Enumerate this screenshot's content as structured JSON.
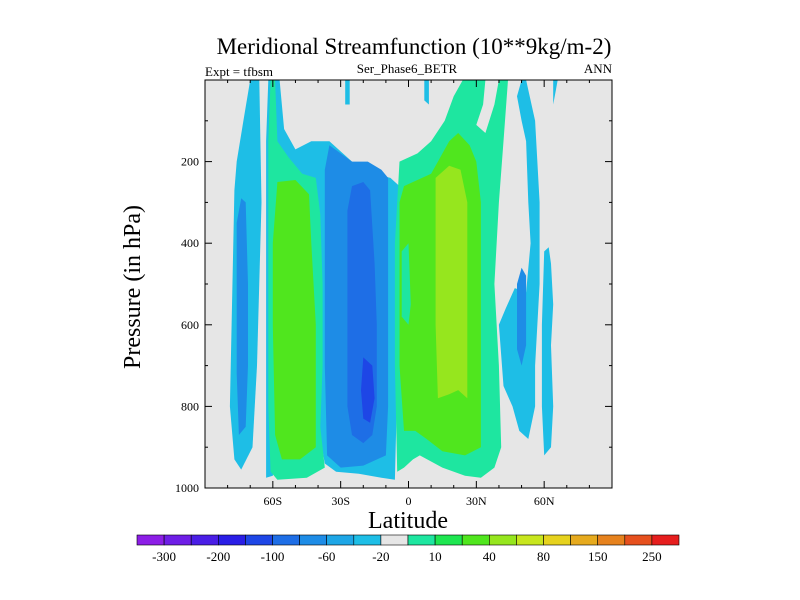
{
  "chart_data": {
    "type": "heatmap",
    "title": "Meridional Streamfunction (10**9kg/m-2)",
    "left_label": "Expt = tfbsm",
    "center_label": "Ser_Phase6_BETR",
    "right_label": "ANN",
    "xlabel": "Latitude",
    "ylabel": "Pressure (in hPa)",
    "xlim": [
      -90,
      90
    ],
    "ylim": [
      1000,
      0
    ],
    "x_ticks": [
      {
        "value": -60,
        "label": "60S"
      },
      {
        "value": -30,
        "label": "30S"
      },
      {
        "value": 0,
        "label": "0"
      },
      {
        "value": 30,
        "label": "30N"
      },
      {
        "value": 60,
        "label": "60N"
      }
    ],
    "y_ticks": [
      {
        "value": 200,
        "label": "200"
      },
      {
        "value": 400,
        "label": "400"
      },
      {
        "value": 600,
        "label": "600"
      },
      {
        "value": 800,
        "label": "800"
      },
      {
        "value": 1000,
        "label": "1000"
      }
    ],
    "background_color": "#e6e6e6",
    "colorbar": {
      "colors": [
        "#8c1ee6",
        "#6e1ee6",
        "#4a1ee6",
        "#2a1ee6",
        "#1e46e6",
        "#1e6ee6",
        "#1e8ce6",
        "#1ea6e6",
        "#1ebee6",
        "#e6e6e6",
        "#1ee6a0",
        "#1ee650",
        "#50e61e",
        "#96e61e",
        "#c8e61e",
        "#e6d21e",
        "#e6aa1e",
        "#e6821e",
        "#e6501e",
        "#e61e1e"
      ],
      "labels": [
        "-300",
        "-200",
        "-100",
        "-60",
        "-20",
        "10",
        "40",
        "80",
        "150",
        "250"
      ]
    },
    "contours": [
      {
        "color": "#1ebee6",
        "points": [
          [
            -77,
            270
          ],
          [
            -76,
            200
          ],
          [
            -73,
            100
          ],
          [
            -70,
            0
          ],
          [
            -66,
            0
          ],
          [
            -65,
            300
          ],
          [
            -67,
            700
          ],
          [
            -69,
            900
          ],
          [
            -74,
            955
          ],
          [
            -77,
            930
          ],
          [
            -79,
            800
          ]
        ]
      },
      {
        "color": "#1e8ce6",
        "points": [
          [
            -76,
            350
          ],
          [
            -74,
            290
          ],
          [
            -72,
            300
          ],
          [
            -71,
            500
          ],
          [
            -71,
            700
          ],
          [
            -72,
            850
          ],
          [
            -75,
            870
          ],
          [
            -76,
            720
          ]
        ]
      },
      {
        "color": "#1ebee6",
        "points": [
          [
            -62,
            0
          ],
          [
            -57,
            0
          ],
          [
            -55,
            120
          ],
          [
            -50,
            170
          ],
          [
            -43,
            150
          ],
          [
            -35,
            150
          ],
          [
            -25,
            200
          ],
          [
            -15,
            230
          ],
          [
            -8,
            240
          ],
          [
            -4,
            260
          ],
          [
            -4,
            500
          ],
          [
            -5,
            750
          ],
          [
            -6,
            980
          ],
          [
            -12,
            975
          ],
          [
            -22,
            965
          ],
          [
            -32,
            960
          ],
          [
            -37,
            940
          ],
          [
            -40,
            850
          ],
          [
            -40,
            600
          ],
          [
            -40,
            400
          ],
          [
            -44,
            260
          ],
          [
            -50,
            250
          ],
          [
            -56,
            250
          ],
          [
            -58,
            400
          ],
          [
            -59,
            700
          ],
          [
            -58,
            900
          ],
          [
            -60,
            970
          ],
          [
            -63,
            975
          ],
          [
            -63,
            800
          ],
          [
            -63,
            400
          ],
          [
            -63,
            150
          ]
        ]
      },
      {
        "color": "#1ee6a0",
        "points": [
          [
            -61,
            0
          ],
          [
            -59,
            0
          ],
          [
            -58,
            150
          ],
          [
            -53,
            190
          ],
          [
            -47,
            230
          ],
          [
            -41,
            240
          ],
          [
            -39,
            330
          ],
          [
            -38,
            500
          ],
          [
            -38,
            700
          ],
          [
            -39,
            850
          ],
          [
            -37,
            950
          ],
          [
            -45,
            975
          ],
          [
            -58,
            980
          ],
          [
            -61,
            960
          ],
          [
            -62,
            800
          ],
          [
            -62,
            400
          ],
          [
            -62,
            150
          ]
        ]
      },
      {
        "color": "#50e61e",
        "points": [
          [
            -58,
            250
          ],
          [
            -50,
            245
          ],
          [
            -44,
            280
          ],
          [
            -43,
            400
          ],
          [
            -41,
            600
          ],
          [
            -41,
            800
          ],
          [
            -41,
            900
          ],
          [
            -48,
            930
          ],
          [
            -56,
            930
          ],
          [
            -59,
            870
          ],
          [
            -60,
            600
          ],
          [
            -60,
            400
          ]
        ]
      },
      {
        "color": "#1e8ce6",
        "points": [
          [
            -35,
            160
          ],
          [
            -25,
            200
          ],
          [
            -18,
            200
          ],
          [
            -12,
            220
          ],
          [
            -9,
            240
          ],
          [
            -9,
            400
          ],
          [
            -9,
            600
          ],
          [
            -9,
            800
          ],
          [
            -10,
            920
          ],
          [
            -20,
            945
          ],
          [
            -30,
            950
          ],
          [
            -36,
            920
          ],
          [
            -37,
            700
          ],
          [
            -37,
            400
          ],
          [
            -37,
            220
          ]
        ]
      },
      {
        "color": "#1e6ee6",
        "points": [
          [
            -25,
            260
          ],
          [
            -20,
            250
          ],
          [
            -17,
            270
          ],
          [
            -15,
            450
          ],
          [
            -14,
            600
          ],
          [
            -14,
            800
          ],
          [
            -16,
            870
          ],
          [
            -20,
            890
          ],
          [
            -25,
            870
          ],
          [
            -27,
            800
          ],
          [
            -27,
            500
          ],
          [
            -27,
            320
          ]
        ]
      },
      {
        "color": "#1e46e6",
        "points": [
          [
            -20,
            680
          ],
          [
            -16,
            700
          ],
          [
            -15,
            780
          ],
          [
            -17,
            840
          ],
          [
            -20,
            830
          ],
          [
            -21,
            760
          ]
        ]
      },
      {
        "color": "#1ebee6",
        "points": [
          [
            -28,
            0
          ],
          [
            -26,
            0
          ],
          [
            -26,
            60
          ],
          [
            -28,
            60
          ]
        ]
      },
      {
        "color": "#1ebee6",
        "points": [
          [
            7,
            0
          ],
          [
            9,
            0
          ],
          [
            9,
            60
          ],
          [
            7,
            50
          ]
        ]
      },
      {
        "color": "#1ee6a0",
        "points": [
          [
            -4,
            200
          ],
          [
            4,
            180
          ],
          [
            10,
            150
          ],
          [
            16,
            100
          ],
          [
            20,
            40
          ],
          [
            24,
            0
          ],
          [
            34,
            0
          ],
          [
            33,
            60
          ],
          [
            30,
            110
          ],
          [
            34,
            130
          ],
          [
            38,
            60
          ],
          [
            40,
            0
          ],
          [
            44,
            0
          ],
          [
            42,
            150
          ],
          [
            40,
            300
          ],
          [
            38,
            500
          ],
          [
            40,
            700
          ],
          [
            41,
            900
          ],
          [
            38,
            950
          ],
          [
            32,
            975
          ],
          [
            25,
            970
          ],
          [
            15,
            950
          ],
          [
            5,
            920
          ],
          [
            2,
            930
          ],
          [
            -2,
            950
          ],
          [
            -5,
            960
          ],
          [
            -6,
            700
          ],
          [
            -6,
            400
          ]
        ]
      },
      {
        "color": "#50e61e",
        "points": [
          [
            -4,
            300
          ],
          [
            -2,
            260
          ],
          [
            2,
            250
          ],
          [
            6,
            240
          ],
          [
            10,
            230
          ],
          [
            13,
            200
          ],
          [
            18,
            150
          ],
          [
            22,
            130
          ],
          [
            27,
            160
          ],
          [
            30,
            200
          ],
          [
            32,
            300
          ],
          [
            32,
            500
          ],
          [
            32,
            700
          ],
          [
            32,
            900
          ],
          [
            25,
            920
          ],
          [
            15,
            910
          ],
          [
            8,
            880
          ],
          [
            3,
            860
          ],
          [
            -2,
            860
          ],
          [
            -4,
            700
          ],
          [
            -4,
            500
          ]
        ]
      },
      {
        "color": "#96e61e",
        "points": [
          [
            12,
            240
          ],
          [
            18,
            210
          ],
          [
            23,
            220
          ],
          [
            26,
            300
          ],
          [
            26,
            500
          ],
          [
            26,
            700
          ],
          [
            26,
            780
          ],
          [
            22,
            760
          ],
          [
            18,
            770
          ],
          [
            13,
            780
          ],
          [
            12,
            600
          ],
          [
            12,
            400
          ]
        ]
      },
      {
        "color": "#1ee6a0",
        "points": [
          [
            -3,
            420
          ],
          [
            0,
            400
          ],
          [
            1,
            550
          ],
          [
            0,
            600
          ],
          [
            -3,
            580
          ]
        ]
      },
      {
        "color": "#1ebee6",
        "points": [
          [
            40,
            600
          ],
          [
            43,
            560
          ],
          [
            47,
            510
          ],
          [
            52,
            520
          ],
          [
            54,
            400
          ],
          [
            53,
            300
          ],
          [
            52,
            150
          ],
          [
            50,
            100
          ],
          [
            48,
            40
          ],
          [
            50,
            0
          ],
          [
            52,
            0
          ],
          [
            56,
            100
          ],
          [
            58,
            300
          ],
          [
            58,
            500
          ],
          [
            56,
            700
          ],
          [
            56,
            800
          ],
          [
            53,
            880
          ],
          [
            49,
            860
          ],
          [
            46,
            800
          ],
          [
            42,
            750
          ]
        ]
      },
      {
        "color": "#1e8ce6",
        "points": [
          [
            48,
            500
          ],
          [
            50,
            460
          ],
          [
            52,
            480
          ],
          [
            52,
            650
          ],
          [
            50,
            700
          ],
          [
            48,
            660
          ]
        ]
      },
      {
        "color": "#1ebee6",
        "points": [
          [
            64,
            0
          ],
          [
            66,
            0
          ],
          [
            65,
            30
          ],
          [
            64,
            60
          ]
        ]
      },
      {
        "color": "#1ebee6",
        "points": [
          [
            60,
            420
          ],
          [
            62,
            410
          ],
          [
            63,
            450
          ],
          [
            64,
            550
          ],
          [
            63,
            650
          ],
          [
            64,
            800
          ],
          [
            63,
            900
          ],
          [
            60,
            920
          ],
          [
            59,
            800
          ],
          [
            59,
            600
          ]
        ]
      }
    ]
  }
}
